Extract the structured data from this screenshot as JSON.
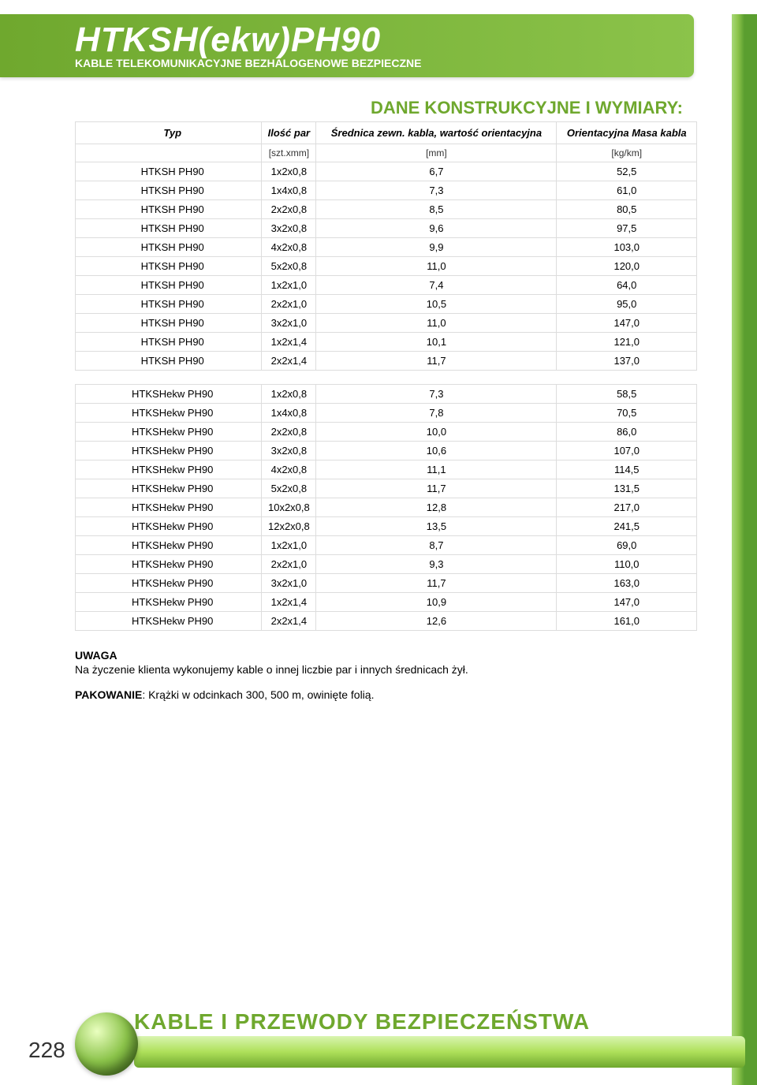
{
  "header": {
    "title": "HTKSH(ekw)PH90",
    "subtitle": "KABLE TELEKOMUNIKACYJNE BEZHALOGENOWE BEZPIECZNE"
  },
  "section_title": "DANE KONSTRUKCYJNE I WYMIARY:",
  "table": {
    "columns": [
      "Typ",
      "Ilość par",
      "Średnica zewn. kabla, wartość orientacyjna",
      "Orientacyjna Masa kabla"
    ],
    "units": [
      "",
      "[szt.xmm]",
      "[mm]",
      "[kg/km]"
    ],
    "group1": [
      [
        "HTKSH PH90",
        "1x2x0,8",
        "6,7",
        "52,5"
      ],
      [
        "HTKSH PH90",
        "1x4x0,8",
        "7,3",
        "61,0"
      ],
      [
        "HTKSH PH90",
        "2x2x0,8",
        "8,5",
        "80,5"
      ],
      [
        "HTKSH PH90",
        "3x2x0,8",
        "9,6",
        "97,5"
      ],
      [
        "HTKSH PH90",
        "4x2x0,8",
        "9,9",
        "103,0"
      ],
      [
        "HTKSH PH90",
        "5x2x0,8",
        "11,0",
        "120,0"
      ],
      [
        "HTKSH PH90",
        "1x2x1,0",
        "7,4",
        "64,0"
      ],
      [
        "HTKSH PH90",
        "2x2x1,0",
        "10,5",
        "95,0"
      ],
      [
        "HTKSH PH90",
        "3x2x1,0",
        "11,0",
        "147,0"
      ],
      [
        "HTKSH PH90",
        "1x2x1,4",
        "10,1",
        "121,0"
      ],
      [
        "HTKSH PH90",
        "2x2x1,4",
        "11,7",
        "137,0"
      ]
    ],
    "group2": [
      [
        "HTKSHekw PH90",
        "1x2x0,8",
        "7,3",
        "58,5"
      ],
      [
        "HTKSHekw PH90",
        "1x4x0,8",
        "7,8",
        "70,5"
      ],
      [
        "HTKSHekw PH90",
        "2x2x0,8",
        "10,0",
        "86,0"
      ],
      [
        "HTKSHekw PH90",
        "3x2x0,8",
        "10,6",
        "107,0"
      ],
      [
        "HTKSHekw PH90",
        "4x2x0,8",
        "11,1",
        "114,5"
      ],
      [
        "HTKSHekw PH90",
        "5x2x0,8",
        "11,7",
        "131,5"
      ],
      [
        "HTKSHekw PH90",
        "10x2x0,8",
        "12,8",
        "217,0"
      ],
      [
        "HTKSHekw PH90",
        "12x2x0,8",
        "13,5",
        "241,5"
      ],
      [
        "HTKSHekw PH90",
        "1x2x1,0",
        "8,7",
        "69,0"
      ],
      [
        "HTKSHekw PH90",
        "2x2x1,0",
        "9,3",
        "110,0"
      ],
      [
        "HTKSHekw PH90",
        "3x2x1,0",
        "11,7",
        "163,0"
      ],
      [
        "HTKSHekw PH90",
        "1x2x1,4",
        "10,9",
        "147,0"
      ],
      [
        "HTKSHekw PH90",
        "2x2x1,4",
        "12,6",
        "161,0"
      ]
    ]
  },
  "notes": {
    "uwaga_label": "UWAGA",
    "uwaga_text": "Na życzenie klienta wykonujemy kable o innej liczbie par i innych średnicach żył.",
    "pakowanie_label": "PAKOWANIE",
    "pakowanie_text": ": Krążki w odcinkach 300, 500 m, owinięte folią."
  },
  "footer": {
    "title": "KABLE I PRZEWODY BEZPIECZEŃSTWA",
    "page_number": "228"
  },
  "colors": {
    "accent_green": "#6fa82e",
    "light_green": "#8bc34a",
    "border_gray": "#dddddd"
  }
}
